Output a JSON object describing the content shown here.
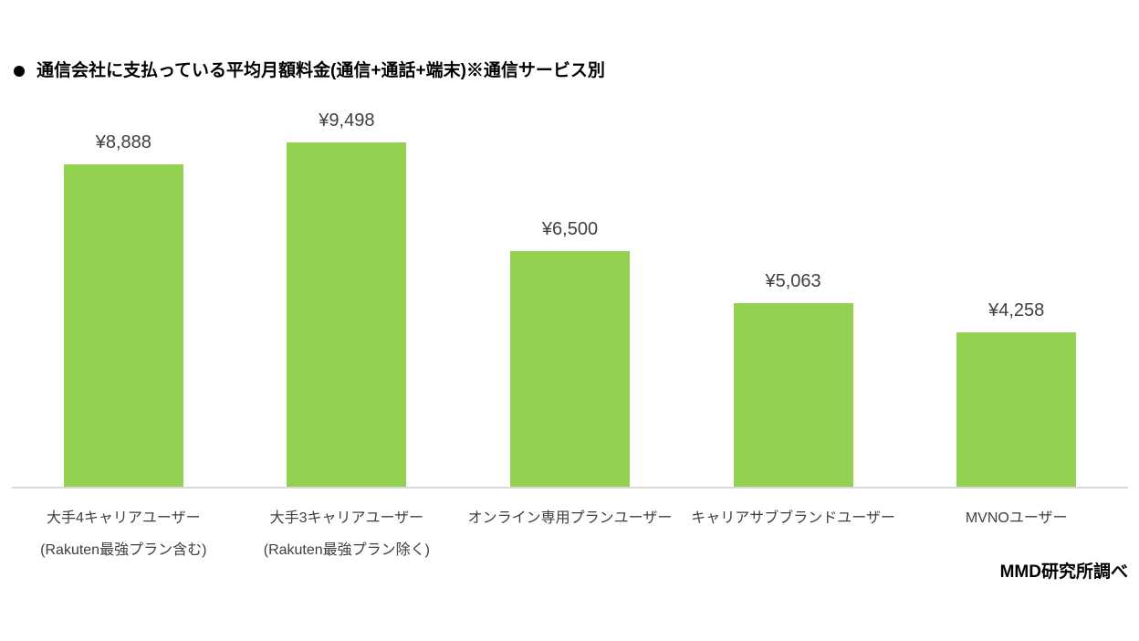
{
  "title": {
    "bullet": "●",
    "text": "通信会社に支払っている平均月額料金(通信+通話+端末)※通信サービス別"
  },
  "source_label": "MMD研究所調べ",
  "colors": {
    "bar": "#92d050",
    "axis_line": "#d9d9d9",
    "value_label": "#404040",
    "category_label": "#404040",
    "title": "#000000"
  },
  "chart_data": {
    "type": "bar",
    "title": "通信会社に支払っている平均月額料金(通信+通話+端末)※通信サービス別",
    "categories": [
      "大手4キャリアユーザー\n(Rakuten最強プラン含む)",
      "大手3キャリアユーザー\n(Rakuten最強プラン除く)",
      "オンライン専用プランユーザー",
      "キャリアサブブランドユーザー",
      "MVNOユーザー"
    ],
    "values": [
      8888,
      9498,
      6500,
      5063,
      4258
    ],
    "value_labels": [
      "¥8,888",
      "¥9,498",
      "¥6,500",
      "¥5,063",
      "¥4,258"
    ],
    "currency_prefix": "¥",
    "xlabel": "",
    "ylabel": "",
    "ylim": [
      0,
      9498
    ],
    "grid": false,
    "legend": false,
    "value_labels_position": "above-bar",
    "source": "MMD研究所調べ"
  }
}
